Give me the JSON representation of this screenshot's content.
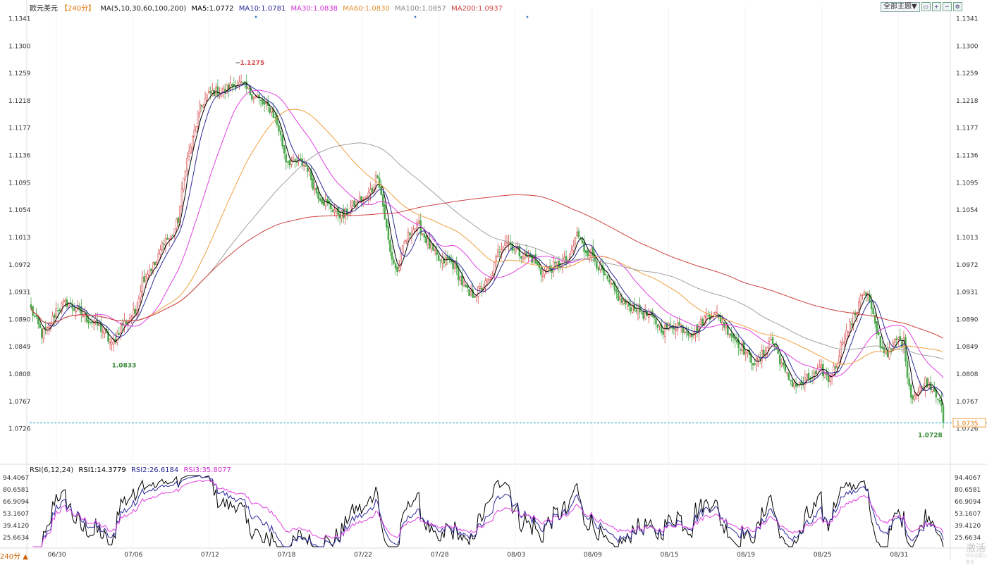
{
  "header": {
    "instrument": "欧元美元",
    "period": "【240分】",
    "ma_label": "MA(5,10,30,60,100,200)",
    "ma5": "MA5:1.0772",
    "ma10": "MA10:1.0781",
    "ma30": "MA30:1.0838",
    "ma60": "MA60:1.0830",
    "ma100": "MA100:1.0857",
    "ma200": "MA200:1.0937"
  },
  "toolbar": {
    "theme_button": "全部主题▼",
    "buttons": [
      "window-icon",
      "zoom-in-icon",
      "zoom-out-icon",
      "settings-icon"
    ]
  },
  "rsi_header": {
    "label": "RSI(6,12,24)",
    "rsi1": "RSI1:14.3779",
    "rsi2": "RSI2:26.6184",
    "rsi3": "RSI3:35.8077"
  },
  "annotations": {
    "high": "1.1275",
    "low": "1.0833",
    "last_low": "1.0728",
    "current_price": "1.0735"
  },
  "bottom": {
    "period_label": "240分 ▲",
    "watermark": "激活",
    "watermark_small": "转到设置以激活"
  },
  "colors": {
    "up": "#d84a4a",
    "down": "#4aa84a",
    "ma5": "#000000",
    "ma10": "#2a2a9a",
    "ma30": "#e040e0",
    "ma60": "#f0a040",
    "ma100": "#a0a0a0",
    "ma200": "#d04040",
    "grid": "#e8e8e8",
    "price_line": "#2aa7c0"
  },
  "chart_data": {
    "type": "candlestick",
    "title": "欧元美元",
    "price_axis_ticks": [
      "1.1341",
      "1.1300",
      "1.1259",
      "1.1218",
      "1.1177",
      "1.1136",
      "1.1095",
      "1.1054",
      "1.1013",
      "1.0972",
      "1.0931",
      "1.0890",
      "1.0849",
      "1.0808",
      "1.0767",
      "1.0726"
    ],
    "date_ticks": [
      "06/30",
      "07/06",
      "07/12",
      "07/18",
      "07/22",
      "07/28",
      "08/03",
      "08/09",
      "08/15",
      "08/19",
      "08/25",
      "08/31"
    ],
    "price_ylim": [
      1.0715,
      1.135
    ],
    "rsi_ticks": [
      "94.4067",
      "80.6581",
      "66.9094",
      "53.1607",
      "39.4120",
      "25.6634"
    ],
    "rsi_ylim": [
      15,
      97
    ],
    "close_keypoints": [
      [
        0,
        1.0905
      ],
      [
        6,
        1.0868
      ],
      [
        10,
        1.0875
      ],
      [
        14,
        1.0905
      ],
      [
        20,
        1.0915
      ],
      [
        26,
        1.0902
      ],
      [
        32,
        1.089
      ],
      [
        38,
        1.088
      ],
      [
        42,
        1.0865
      ],
      [
        45,
        1.085
      ],
      [
        50,
        1.088
      ],
      [
        54,
        1.089
      ],
      [
        58,
        1.09
      ],
      [
        62,
        1.095
      ],
      [
        66,
        1.0965
      ],
      [
        70,
        1.0975
      ],
      [
        74,
        1.101
      ],
      [
        78,
        1.1012
      ],
      [
        82,
        1.104
      ],
      [
        86,
        1.112
      ],
      [
        90,
        1.116
      ],
      [
        94,
        1.1205
      ],
      [
        98,
        1.1225
      ],
      [
        102,
        1.1232
      ],
      [
        106,
        1.123
      ],
      [
        110,
        1.1238
      ],
      [
        114,
        1.1245
      ],
      [
        118,
        1.124
      ],
      [
        122,
        1.123
      ],
      [
        126,
        1.1222
      ],
      [
        130,
        1.121
      ],
      [
        134,
        1.1205
      ],
      [
        138,
        1.1175
      ],
      [
        142,
        1.113
      ],
      [
        146,
        1.1125
      ],
      [
        150,
        1.1125
      ],
      [
        154,
        1.1118
      ],
      [
        158,
        1.1085
      ],
      [
        162,
        1.107
      ],
      [
        166,
        1.106
      ],
      [
        170,
        1.1052
      ],
      [
        174,
        1.1045
      ],
      [
        178,
        1.1058
      ],
      [
        182,
        1.1068
      ],
      [
        186,
        1.107
      ],
      [
        190,
        1.1085
      ],
      [
        193,
        1.111
      ],
      [
        196,
        1.106
      ],
      [
        200,
        1.099
      ],
      [
        204,
        1.096
      ],
      [
        208,
        1.1005
      ],
      [
        212,
        1.1025
      ],
      [
        216,
        1.103
      ],
      [
        220,
        1.101
      ],
      [
        224,
        1.099
      ],
      [
        228,
        1.0975
      ],
      [
        232,
        1.098
      ],
      [
        236,
        1.097
      ],
      [
        240,
        1.0945
      ],
      [
        244,
        1.0925
      ],
      [
        248,
        1.093
      ],
      [
        252,
        1.094
      ],
      [
        256,
        1.095
      ],
      [
        260,
        1.099
      ],
      [
        264,
        1.101
      ],
      [
        268,
        1.1
      ],
      [
        272,
        1.099
      ],
      [
        276,
        1.0985
      ],
      [
        280,
        1.098
      ],
      [
        284,
        1.096
      ],
      [
        288,
        1.0965
      ],
      [
        292,
        1.097
      ],
      [
        296,
        1.0975
      ],
      [
        300,
        1.098
      ],
      [
        304,
        1.102
      ],
      [
        308,
        1.0995
      ],
      [
        312,
        1.099
      ],
      [
        316,
        1.097
      ],
      [
        320,
        1.095
      ],
      [
        324,
        1.0935
      ],
      [
        328,
        1.092
      ],
      [
        332,
        1.091
      ],
      [
        336,
        1.091
      ],
      [
        340,
        1.09
      ],
      [
        344,
        1.0895
      ],
      [
        348,
        1.0885
      ],
      [
        352,
        1.0875
      ],
      [
        356,
        1.088
      ],
      [
        360,
        1.0882
      ],
      [
        364,
        1.0875
      ],
      [
        368,
        1.087
      ],
      [
        372,
        1.088
      ],
      [
        376,
        1.0895
      ],
      [
        380,
        1.09
      ],
      [
        384,
        1.089
      ],
      [
        388,
        1.0875
      ],
      [
        392,
        1.086
      ],
      [
        396,
        1.0848
      ],
      [
        400,
        1.0832
      ],
      [
        404,
        1.0825
      ],
      [
        408,
        1.084
      ],
      [
        412,
        1.086
      ],
      [
        416,
        1.0838
      ],
      [
        420,
        1.0808
      ],
      [
        424,
        1.0795
      ],
      [
        428,
        1.079
      ],
      [
        432,
        1.08
      ],
      [
        436,
        1.0805
      ],
      [
        440,
        1.0815
      ],
      [
        444,
        1.08
      ],
      [
        448,
        1.082
      ],
      [
        452,
        1.086
      ],
      [
        456,
        1.088
      ],
      [
        460,
        1.0905
      ],
      [
        462,
        1.093
      ],
      [
        466,
        1.0925
      ],
      [
        470,
        1.088
      ],
      [
        474,
        1.0845
      ],
      [
        478,
        1.084
      ],
      [
        482,
        1.086
      ],
      [
        486,
        1.0855
      ],
      [
        488,
        1.081
      ],
      [
        490,
        1.0775
      ],
      [
        494,
        1.078
      ],
      [
        498,
        1.0798
      ],
      [
        502,
        1.079
      ],
      [
        506,
        1.077
      ],
      [
        508,
        1.0735
      ]
    ],
    "candle_count": 509,
    "series": [
      {
        "name": "MA5",
        "window": 5
      },
      {
        "name": "MA10",
        "window": 10
      },
      {
        "name": "MA30",
        "window": 30
      },
      {
        "name": "MA60",
        "window": 60
      },
      {
        "name": "MA100",
        "window": 100
      },
      {
        "name": "MA200",
        "window": 200
      }
    ],
    "rsi_series": [
      {
        "name": "RSI1",
        "period": 6
      },
      {
        "name": "RSI2",
        "period": 12
      },
      {
        "name": "RSI3",
        "period": 24
      }
    ],
    "extremes": {
      "high": 1.1275,
      "low_start": 1.0833,
      "low_end": 1.0728,
      "current": 1.0735
    }
  }
}
